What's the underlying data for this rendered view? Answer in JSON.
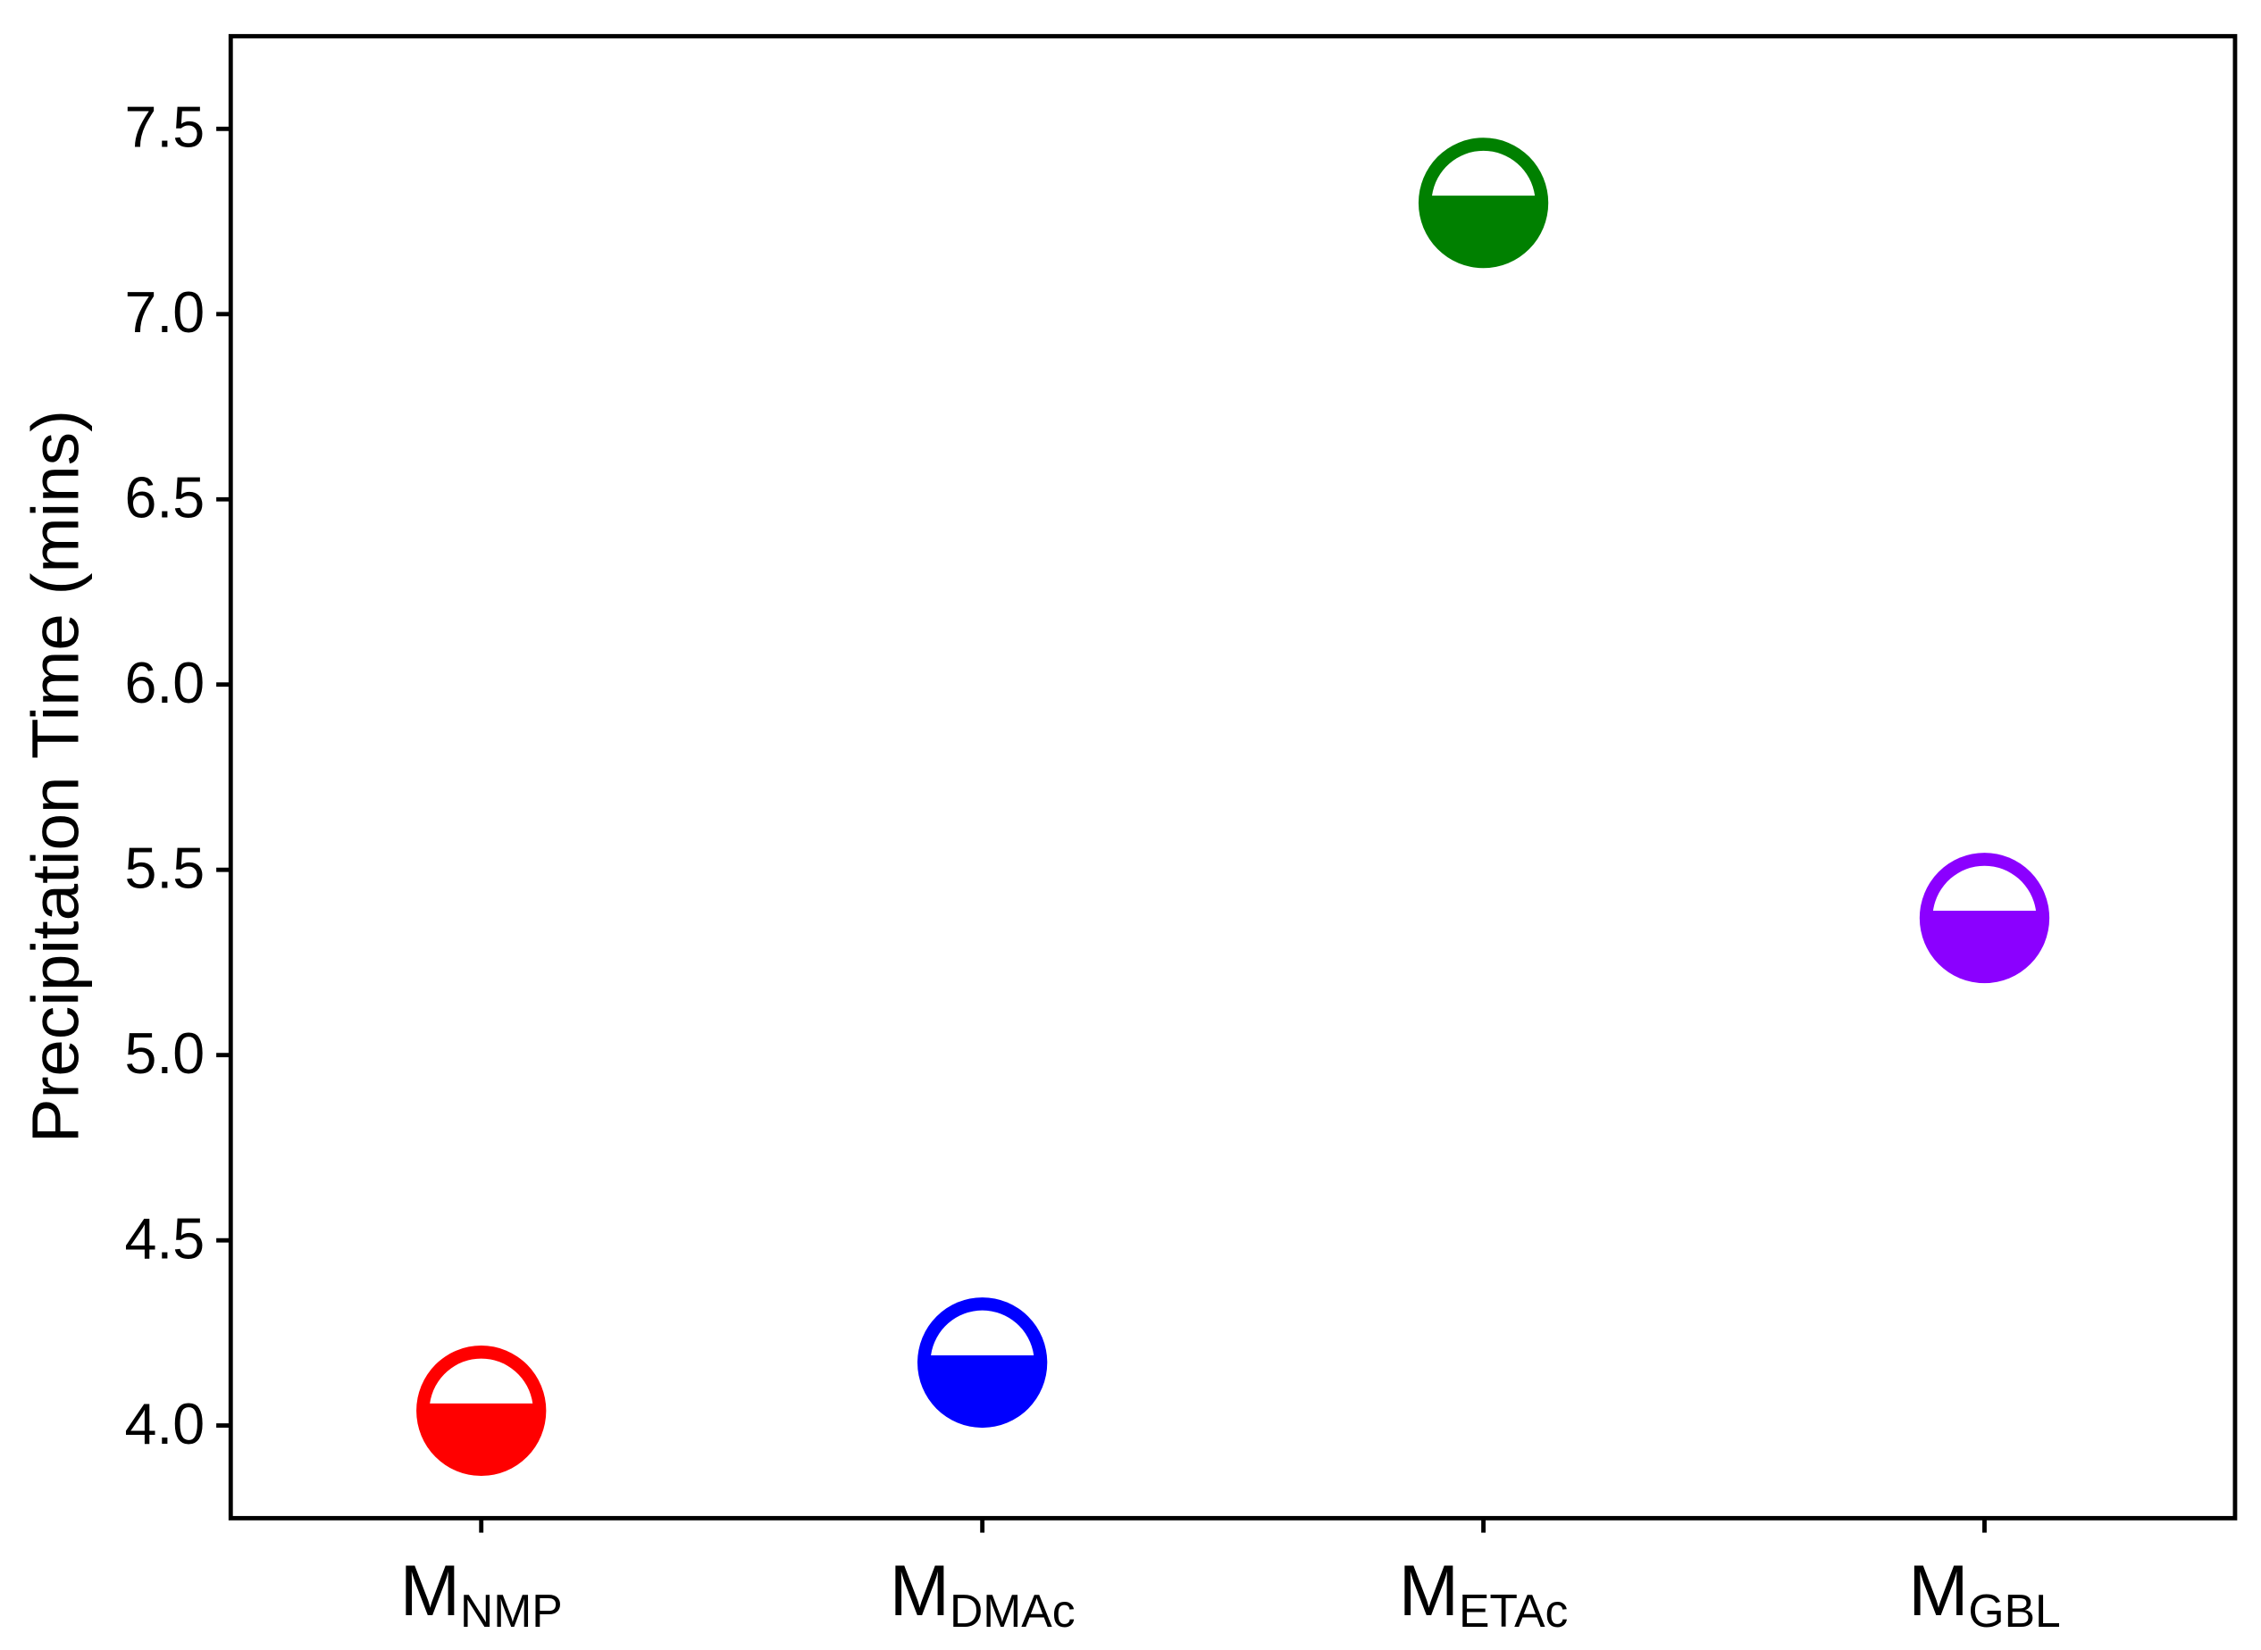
{
  "chart_data": {
    "type": "scatter",
    "y_label": "Precipitation Time (mins)",
    "category_prefix": "M",
    "categories": [
      "NMP",
      "DMAc",
      "ETAc",
      "GBL"
    ],
    "values": [
      4.04,
      4.17,
      7.3,
      5.37
    ],
    "colors": [
      "#ff0000",
      "#0000ff",
      "#008000",
      "#8b00ff"
    ],
    "ylim": [
      3.75,
      7.75
    ],
    "yticks": [
      {
        "value": 4,
        "label": "4.0"
      },
      4.5,
      {
        "value": 5,
        "label": "5.0"
      },
      5.5,
      {
        "value": 6,
        "label": "6.0"
      },
      6.5,
      {
        "value": 7,
        "label": "7.0"
      },
      7.5
    ],
    "grid": false
  }
}
